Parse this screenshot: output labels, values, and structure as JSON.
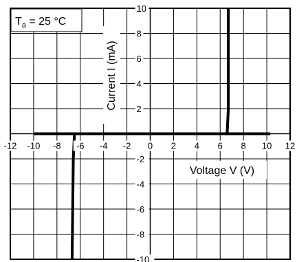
{
  "chart_data": {
    "type": "line",
    "condition": {
      "prefix": "T",
      "subscript": "a",
      "rest": " = 25 °C"
    },
    "xlabel": "Voltage   V   (V)",
    "ylabel": "Current   I   (mA)",
    "xlim": [
      -12,
      12
    ],
    "ylim": [
      -10,
      10
    ],
    "x_ticks": [
      -12,
      -10,
      -8,
      -6,
      -4,
      -2,
      0,
      2,
      4,
      6,
      8,
      10,
      12
    ],
    "y_ticks": [
      10,
      8,
      6,
      4,
      2,
      -2,
      -4,
      -6,
      -8,
      -10
    ],
    "grid": true,
    "x_grid_step": 2,
    "y_grid_step": 2,
    "series": [
      {
        "color": "#000000",
        "x": [
          -6.7,
          -6.6,
          -6.5,
          -10,
          6.6,
          6.7,
          6.7
        ],
        "y": [
          -10,
          -2,
          0,
          0,
          0,
          2,
          10
        ]
      }
    ],
    "series_plot": [
      {
        "x": [
          -6.7,
          -6.6,
          -6.5
        ],
        "y": [
          -10,
          -2,
          0
        ]
      },
      {
        "x": [
          -10,
          10.3
        ],
        "y": [
          0,
          0
        ]
      },
      {
        "x": [
          6.6,
          6.7,
          6.7
        ],
        "y": [
          0,
          2,
          10
        ]
      }
    ]
  }
}
